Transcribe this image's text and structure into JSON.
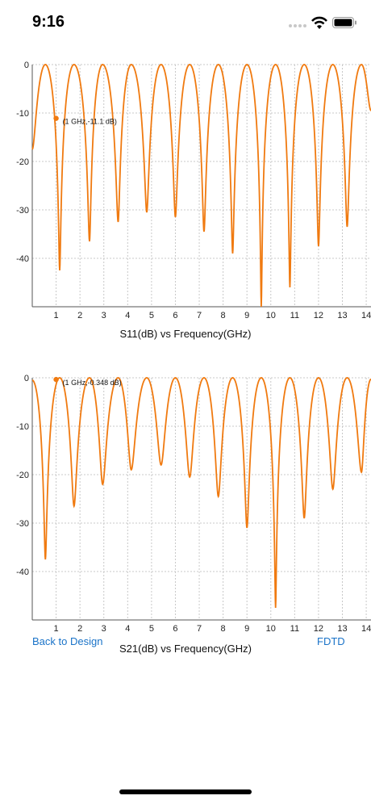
{
  "status_bar": {
    "time": "9:16",
    "icons": [
      "signal-dots-icon",
      "wifi-icon",
      "battery-icon"
    ]
  },
  "chart_data": [
    {
      "type": "line",
      "title": "",
      "xlabel": "S11(dB) vs Frequency(GHz)",
      "ylabel": "",
      "xlim": [
        0,
        14.2
      ],
      "ylim": [
        -50,
        0
      ],
      "xticks": [
        1,
        2,
        3,
        4,
        5,
        6,
        7,
        8,
        9,
        10,
        11,
        12,
        13,
        14
      ],
      "yticks": [
        0,
        -10,
        -20,
        -30,
        -40
      ],
      "grid": true,
      "color": "#f07a10",
      "start_value": -17.5,
      "peaks_x": [
        0.55,
        1.75,
        2.95,
        4.15,
        5.4,
        6.6,
        7.8,
        9.0,
        10.2,
        11.4,
        12.6,
        13.8
      ],
      "dips": [
        {
          "x": 1.15,
          "y": -42.5
        },
        {
          "x": 2.4,
          "y": -36.5
        },
        {
          "x": 3.6,
          "y": -32.5
        },
        {
          "x": 4.8,
          "y": -30.5
        },
        {
          "x": 6.0,
          "y": -31.5
        },
        {
          "x": 7.2,
          "y": -34.5
        },
        {
          "x": 8.4,
          "y": -39.0
        },
        {
          "x": 9.6,
          "y": -50.0
        },
        {
          "x": 10.8,
          "y": -46.0
        },
        {
          "x": 12.0,
          "y": -37.5
        },
        {
          "x": 13.2,
          "y": -33.5
        }
      ],
      "end_value": -9.5,
      "marker": {
        "x": 1,
        "y": -11.1,
        "label": "(1 GHz,-11.1 dB)"
      }
    },
    {
      "type": "line",
      "title": "",
      "xlabel": "S21(dB) vs Frequency(GHz)",
      "ylabel": "",
      "xlim": [
        0,
        14.2
      ],
      "ylim": [
        -50,
        0
      ],
      "xticks": [
        1,
        2,
        3,
        4,
        5,
        6,
        7,
        8,
        9,
        10,
        11,
        12,
        13,
        14
      ],
      "yticks": [
        0,
        -10,
        -20,
        -30,
        -40
      ],
      "grid": true,
      "color": "#f07a10",
      "start_value": -0.5,
      "peaks_x": [
        1.15,
        2.4,
        3.6,
        4.8,
        6.0,
        7.2,
        8.4,
        9.6,
        10.8,
        12.0,
        13.2
      ],
      "dips": [
        {
          "x": 0.55,
          "y": -37.5
        },
        {
          "x": 1.75,
          "y": -26.5
        },
        {
          "x": 2.95,
          "y": -22.0
        },
        {
          "x": 4.15,
          "y": -19.0
        },
        {
          "x": 5.4,
          "y": -18.0
        },
        {
          "x": 6.6,
          "y": -20.5
        },
        {
          "x": 7.8,
          "y": -24.5
        },
        {
          "x": 9.0,
          "y": -31.0
        },
        {
          "x": 10.2,
          "y": -47.5
        },
        {
          "x": 11.4,
          "y": -29.0
        },
        {
          "x": 12.6,
          "y": -23.0
        },
        {
          "x": 13.8,
          "y": -19.5
        }
      ],
      "end_value": -0.3,
      "marker": {
        "x": 1,
        "y": -0.348,
        "label": "(1 GHz,-0.348 dB)"
      }
    }
  ],
  "buttons": {
    "back": "Back to Design",
    "fdtd": "FDTD"
  }
}
